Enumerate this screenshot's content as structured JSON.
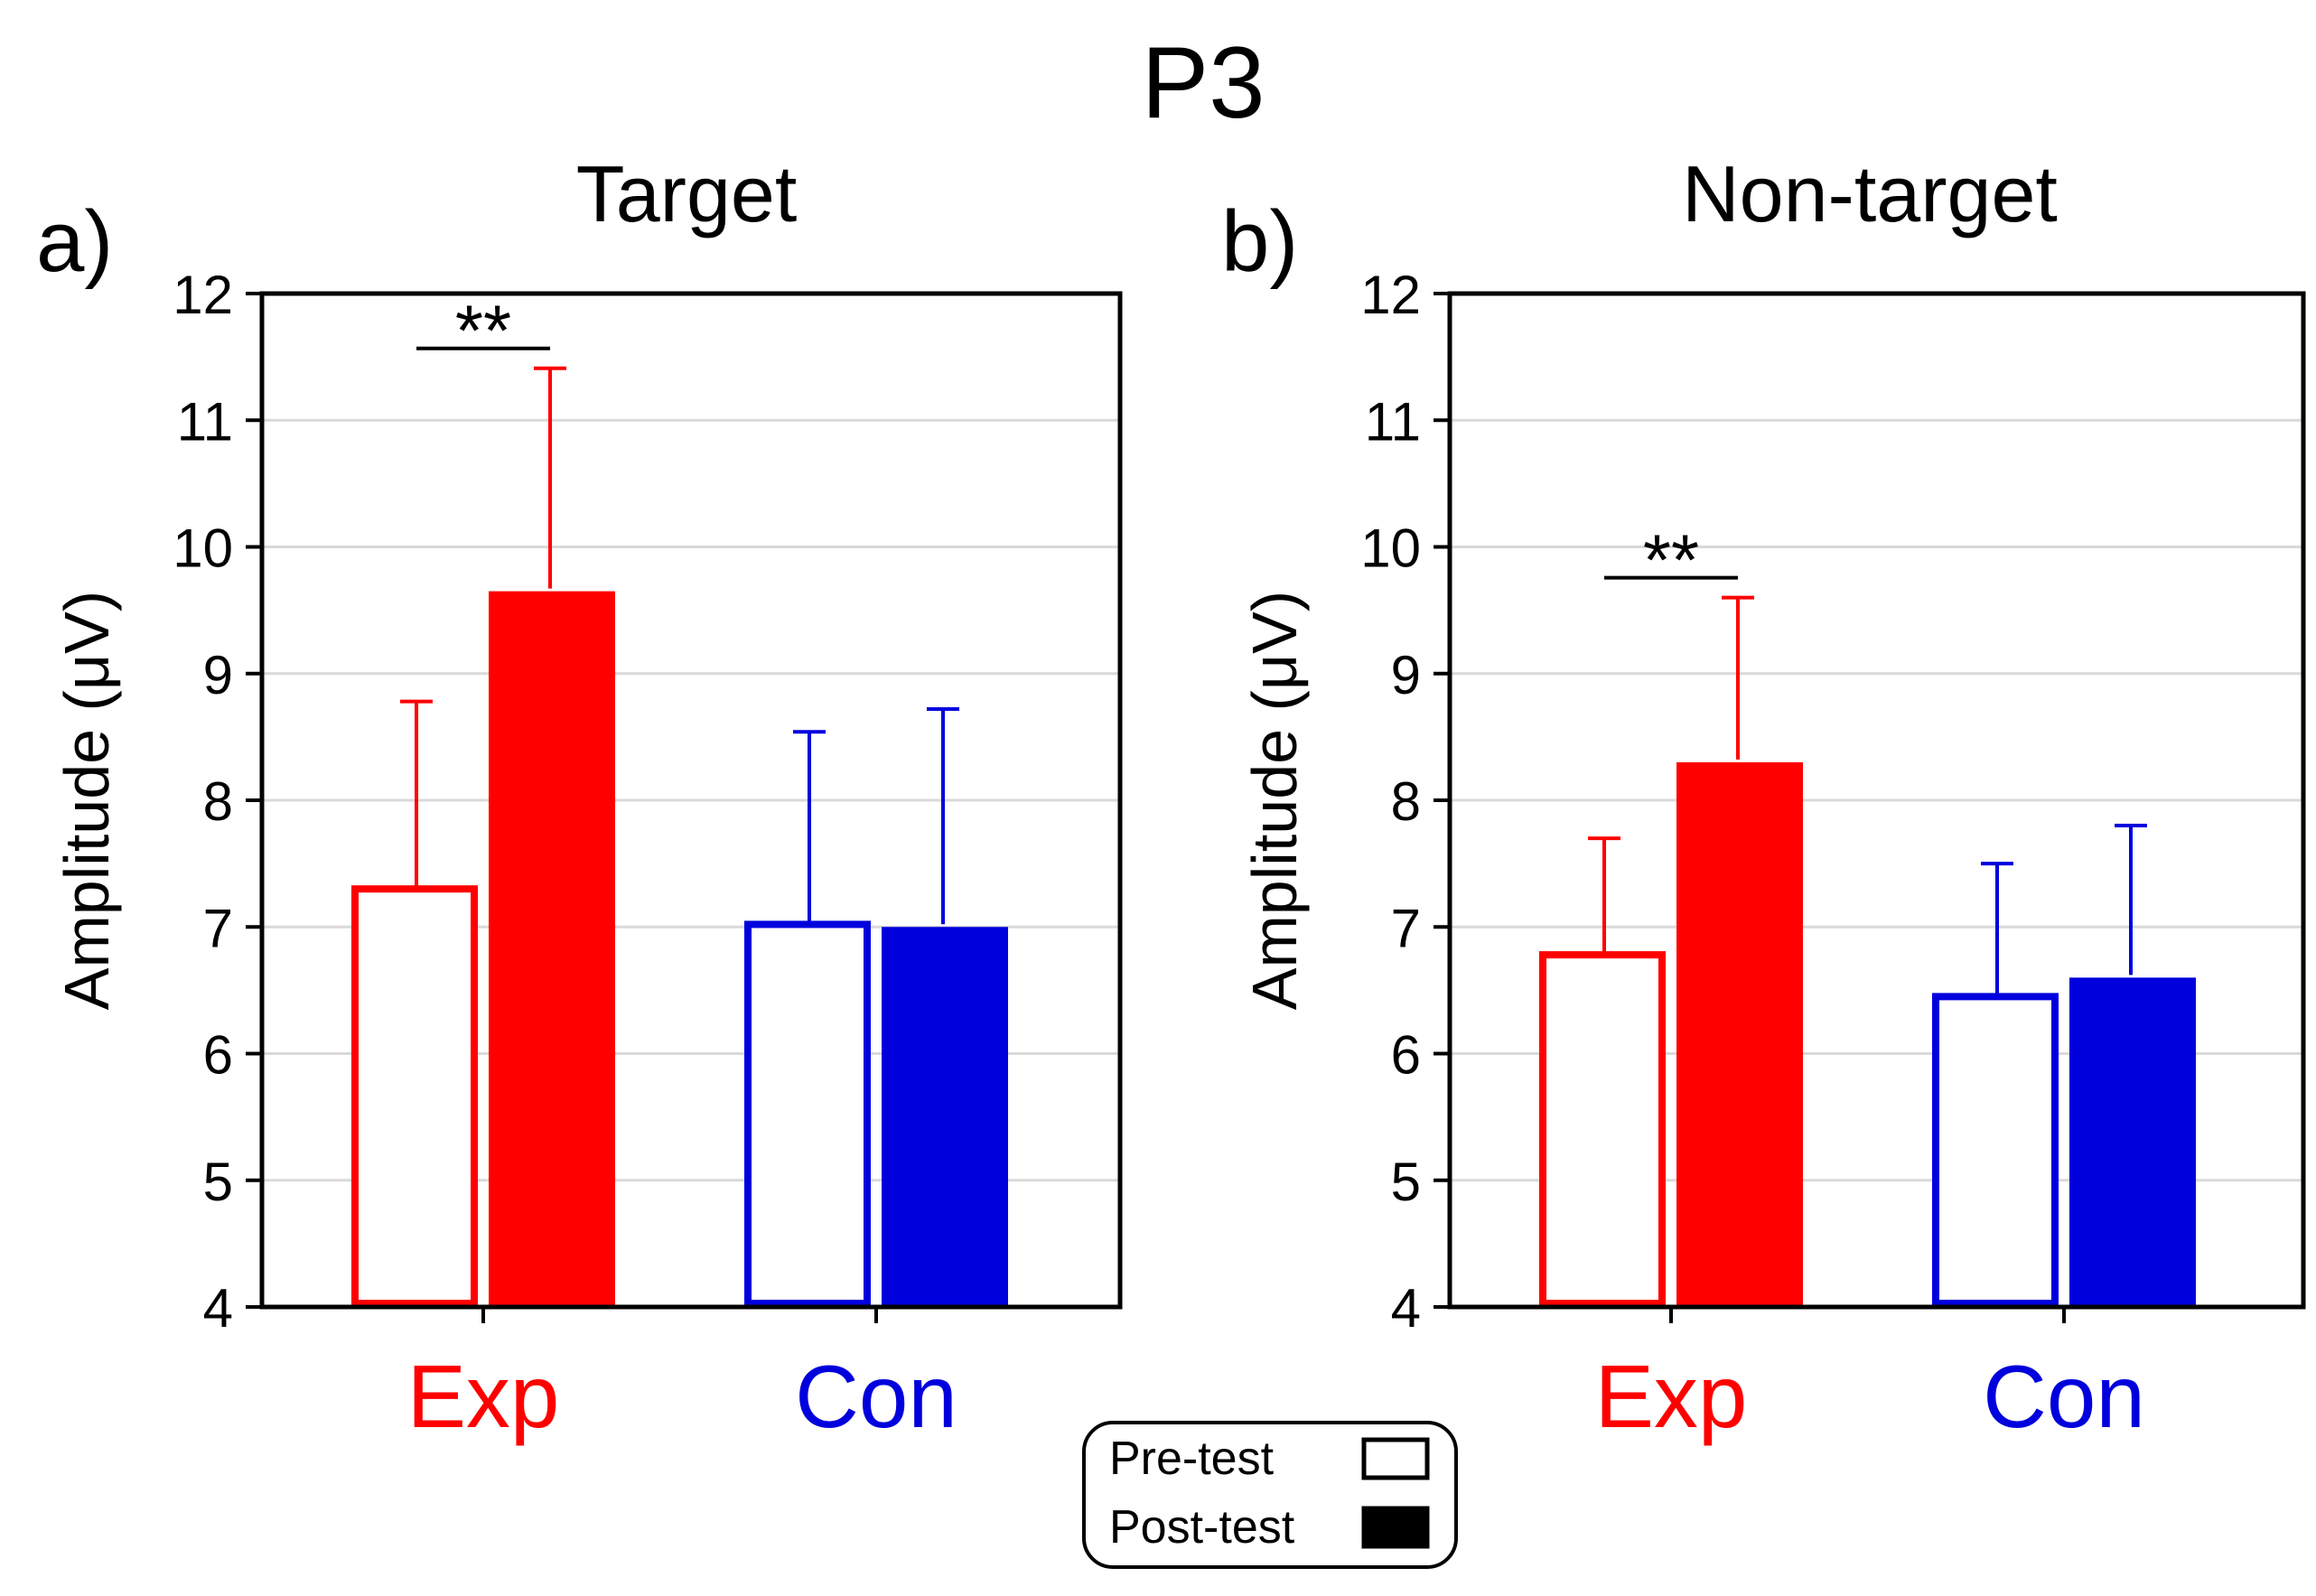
{
  "figure_title": "P3",
  "legend": {
    "pre_label": "Pre-test",
    "post_label": "Post-test"
  },
  "colors": {
    "exp": "#ff0000",
    "con": "#0000dd",
    "axis": "#000000",
    "grid": "#d9d9d9"
  },
  "chart_data": [
    {
      "type": "bar",
      "panel_label": "a)",
      "title": "Target",
      "xlabel": "",
      "ylabel": "Amplitude (μV)",
      "ylim": [
        4,
        12
      ],
      "yticks": [
        4,
        5,
        6,
        7,
        8,
        9,
        10,
        11,
        12
      ],
      "grid": true,
      "categories": [
        "Exp",
        "Con"
      ],
      "series": [
        {
          "name": "Pre-test",
          "fill": "open",
          "values": [
            7.3,
            7.02
          ],
          "errors": [
            1.48,
            1.52
          ]
        },
        {
          "name": "Post-test",
          "fill": "solid",
          "values": [
            9.65,
            7.0
          ],
          "errors": [
            1.76,
            1.72
          ]
        }
      ],
      "annotations": [
        {
          "text": "**",
          "category": "Exp"
        }
      ]
    },
    {
      "type": "bar",
      "panel_label": "b)",
      "title": "Non-target",
      "xlabel": "",
      "ylabel": "Amplitude (μV)",
      "ylim": [
        4,
        12
      ],
      "yticks": [
        4,
        5,
        6,
        7,
        8,
        9,
        10,
        11,
        12
      ],
      "grid": true,
      "categories": [
        "Exp",
        "Con"
      ],
      "series": [
        {
          "name": "Pre-test",
          "fill": "open",
          "values": [
            6.78,
            6.45
          ],
          "errors": [
            0.92,
            1.05
          ]
        },
        {
          "name": "Post-test",
          "fill": "solid",
          "values": [
            8.3,
            6.6
          ],
          "errors": [
            1.3,
            1.2
          ]
        }
      ],
      "annotations": [
        {
          "text": "**",
          "category": "Exp"
        }
      ]
    }
  ]
}
